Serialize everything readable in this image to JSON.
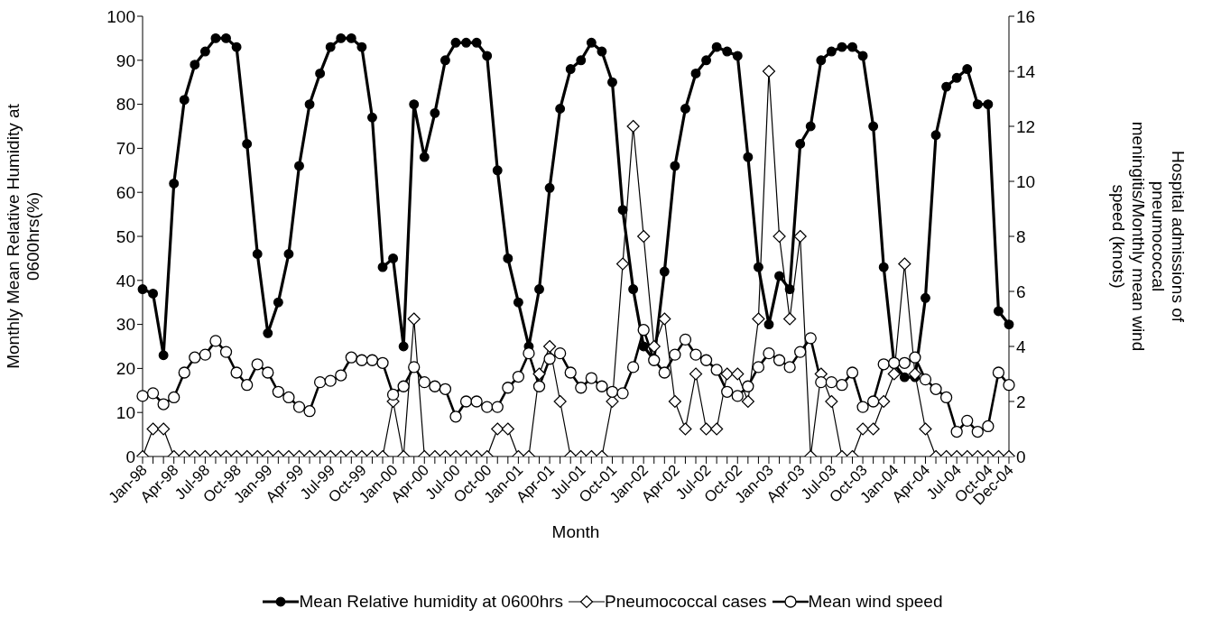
{
  "chart_data": {
    "type": "line",
    "xlabel": "Month",
    "ylabel": "Monthly Mean Relative Humidity at 0600hrs(%)",
    "y2label": "Hospital admissions of pneumococcal meningitis/Monthly mean wind speed (knots)",
    "categories": [
      "Jan-98",
      null,
      null,
      "Apr-98",
      null,
      null,
      "Jul-98",
      null,
      null,
      "Oct-98",
      null,
      null,
      "Jan-99",
      null,
      null,
      "Apr-99",
      null,
      null,
      "Jul-99",
      null,
      null,
      "Oct-99",
      null,
      null,
      "Jan-00",
      null,
      null,
      "Apr-00",
      null,
      null,
      "Jul-00",
      null,
      null,
      "Oct-00",
      null,
      null,
      "Jan-01",
      null,
      null,
      "Apr-01",
      null,
      null,
      "Jul-01",
      null,
      null,
      "Oct-01",
      null,
      null,
      "Jan-02",
      null,
      null,
      "Apr-02",
      null,
      null,
      "Jul-02",
      null,
      null,
      "Oct-02",
      null,
      null,
      "Jan-03",
      null,
      null,
      "Apr-03",
      null,
      null,
      "Jul-03",
      null,
      null,
      "Oct-03",
      null,
      null,
      "Jan-04",
      null,
      null,
      "Apr-04",
      null,
      null,
      "Jul-04",
      null,
      null,
      "Oct-04",
      null,
      "Dec-04"
    ],
    "series": [
      {
        "name": "Mean Relative humidity at 0600hrs",
        "color": "#000000",
        "marker": "circle",
        "values": [
          38,
          37,
          23,
          62,
          81,
          89,
          92,
          95,
          95,
          93,
          71,
          46,
          28,
          35,
          46,
          66,
          80,
          87,
          93,
          95,
          95,
          93,
          77,
          43,
          45,
          25,
          80,
          68,
          78,
          90,
          94,
          94,
          94,
          91,
          65,
          45,
          35,
          25,
          38,
          61,
          79,
          88,
          90,
          94,
          92,
          85,
          56,
          38,
          25,
          22,
          42,
          66,
          79,
          87,
          90,
          93,
          92,
          91,
          68,
          43,
          30,
          41,
          38,
          71,
          75,
          90,
          92,
          93,
          93,
          91,
          75,
          43,
          21,
          18,
          18,
          36,
          73,
          84,
          86,
          88,
          80,
          80,
          33,
          30
        ]
      },
      {
        "name": "Pneumococcal cases",
        "color": "#000000",
        "marker": "diamond",
        "axis": "y2",
        "values": [
          0,
          1,
          1,
          0,
          0,
          0,
          0,
          0,
          0,
          0,
          0,
          0,
          0,
          0,
          0,
          0,
          0,
          0,
          0,
          0,
          0,
          0,
          0,
          0,
          2,
          0,
          5,
          0,
          0,
          0,
          0,
          0,
          0,
          0,
          1,
          1,
          0,
          0,
          3,
          4,
          2,
          0,
          0,
          0,
          0,
          2,
          7,
          12,
          8,
          4,
          5,
          2,
          1,
          3,
          1,
          1,
          3,
          3,
          2,
          5,
          14,
          8,
          5,
          8,
          0,
          3,
          2,
          0,
          0,
          1,
          1,
          2,
          3,
          7,
          3,
          1,
          0,
          0,
          0,
          0,
          0,
          0,
          0,
          0
        ]
      },
      {
        "name": "Mean wind speed",
        "color": "#000000",
        "marker": "circle",
        "axis": "y2",
        "values": [
          2.2,
          2.3,
          1.9,
          2.15,
          3.05,
          3.6,
          3.7,
          4.2,
          3.8,
          3.05,
          2.6,
          3.35,
          3.05,
          2.35,
          2.15,
          1.8,
          1.65,
          2.7,
          2.75,
          2.95,
          3.6,
          3.5,
          3.5,
          3.4,
          2.25,
          2.55,
          3.25,
          2.7,
          2.55,
          2.45,
          1.45,
          2.0,
          2.0,
          1.8,
          1.8,
          2.5,
          2.9,
          3.75,
          2.55,
          3.55,
          3.75,
          3.05,
          2.5,
          2.85,
          2.55,
          2.35,
          2.3,
          3.25,
          4.6,
          3.5,
          3.05,
          3.7,
          4.25,
          3.7,
          3.5,
          3.15,
          2.35,
          2.2,
          2.55,
          3.25,
          3.75,
          3.5,
          3.25,
          3.8,
          4.3,
          2.7,
          2.7,
          2.6,
          3.05,
          1.8,
          2.0,
          3.35,
          3.4,
          3.4,
          3.6,
          2.8,
          2.45,
          2.15,
          0.9,
          1.3,
          0.9,
          1.1,
          3.05,
          2.6
        ]
      }
    ],
    "ylim": [
      0,
      100
    ],
    "yticks": [
      0,
      10,
      20,
      30,
      40,
      50,
      60,
      70,
      80,
      90,
      100
    ],
    "y2lim": [
      0,
      16
    ],
    "y2ticks": [
      0,
      2,
      4,
      6,
      8,
      10,
      12,
      14,
      16
    ],
    "grid": false,
    "legend": "bottom"
  }
}
